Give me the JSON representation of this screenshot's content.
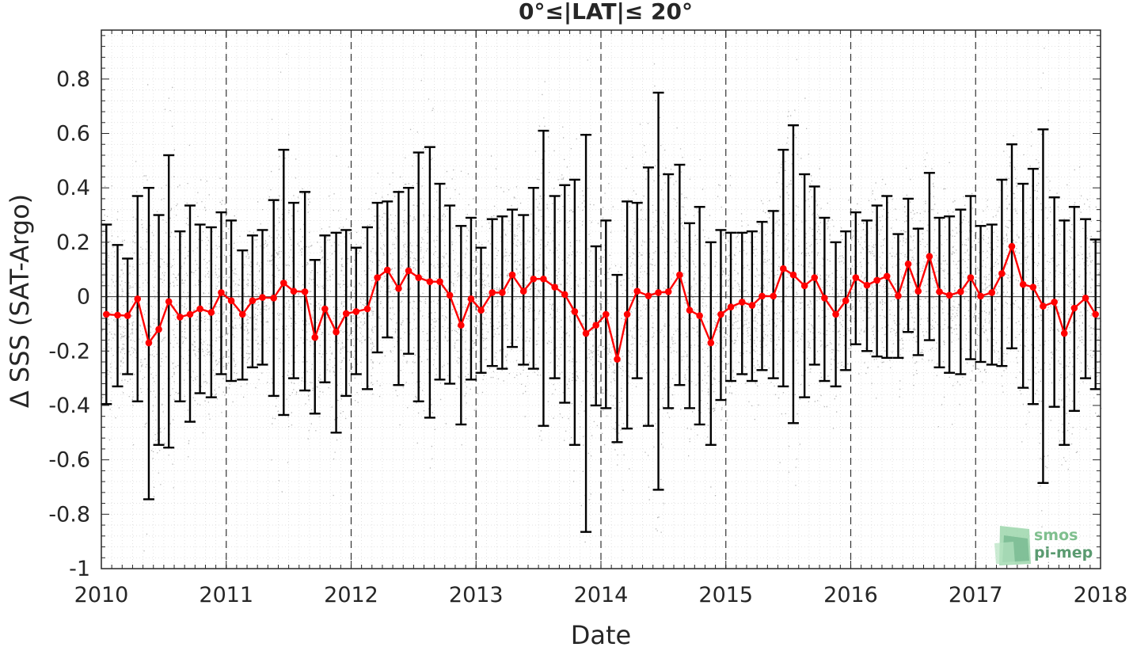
{
  "chart_data": {
    "type": "line",
    "title": "0°≤|LAT|≤ 20°",
    "xlabel": "Date",
    "ylabel": "Δ SSS (SAT-Argo)",
    "xlim": [
      2010,
      2018
    ],
    "ylim": [
      -1,
      0.98
    ],
    "x_ticks": [
      "2010",
      "2011",
      "2012",
      "2013",
      "2014",
      "2015",
      "2016",
      "2017",
      "2018"
    ],
    "y_ticks": [
      "0.8",
      "0.6",
      "0.4",
      "0.2",
      "0",
      "-0.2",
      "-0.4",
      "-0.6",
      "-0.8",
      "-1"
    ],
    "y_tick_values": [
      0.8,
      0.6,
      0.4,
      0.2,
      0,
      -0.2,
      -0.4,
      -0.6,
      -0.8,
      -1
    ],
    "grid": "minor dotted, dashed vertical lines at year boundaries",
    "series": [
      {
        "color": "#ff0000",
        "marker": "circle",
        "x": [
          2010.04,
          2010.13,
          2010.21,
          2010.29,
          2010.38,
          2010.46,
          2010.54,
          2010.63,
          2010.71,
          2010.79,
          2010.88,
          2010.96,
          2011.04,
          2011.13,
          2011.21,
          2011.29,
          2011.38,
          2011.46,
          2011.54,
          2011.63,
          2011.71,
          2011.79,
          2011.88,
          2011.96,
          2012.04,
          2012.13,
          2012.21,
          2012.29,
          2012.38,
          2012.46,
          2012.54,
          2012.63,
          2012.71,
          2012.79,
          2012.88,
          2012.96,
          2013.04,
          2013.13,
          2013.21,
          2013.29,
          2013.38,
          2013.46,
          2013.54,
          2013.63,
          2013.71,
          2013.79,
          2013.88,
          2013.96,
          2014.04,
          2014.13,
          2014.21,
          2014.29,
          2014.38,
          2014.46,
          2014.54,
          2014.63,
          2014.71,
          2014.79,
          2014.88,
          2014.96,
          2015.04,
          2015.13,
          2015.21,
          2015.29,
          2015.38,
          2015.46,
          2015.54,
          2015.63,
          2015.71,
          2015.79,
          2015.88,
          2015.96,
          2016.04,
          2016.13,
          2016.21,
          2016.29,
          2016.38,
          2016.46,
          2016.54,
          2016.63,
          2016.71,
          2016.79,
          2016.88,
          2016.96,
          2017.04,
          2017.13,
          2017.21,
          2017.29,
          2017.38,
          2017.46,
          2017.54,
          2017.63,
          2017.71,
          2017.79,
          2017.88,
          2017.96
        ],
        "y": [
          -0.065,
          -0.068,
          -0.07,
          -0.008,
          -0.17,
          -0.12,
          -0.018,
          -0.075,
          -0.065,
          -0.045,
          -0.058,
          0.015,
          -0.015,
          -0.065,
          -0.015,
          -0.003,
          -0.005,
          0.05,
          0.02,
          0.018,
          -0.15,
          -0.045,
          -0.13,
          -0.062,
          -0.055,
          -0.045,
          0.07,
          0.098,
          0.03,
          0.095,
          0.07,
          0.055,
          0.055,
          0.005,
          -0.105,
          -0.008,
          -0.05,
          0.015,
          0.015,
          0.08,
          0.02,
          0.065,
          0.065,
          0.035,
          0.008,
          -0.055,
          -0.135,
          -0.105,
          -0.065,
          -0.23,
          -0.065,
          0.02,
          0.003,
          0.015,
          0.018,
          0.08,
          -0.05,
          -0.07,
          -0.17,
          -0.065,
          -0.038,
          -0.02,
          -0.032,
          0.002,
          0.002,
          0.103,
          0.08,
          0.04,
          0.07,
          -0.005,
          -0.065,
          -0.015,
          0.07,
          0.042,
          0.06,
          0.075,
          0.003,
          0.12,
          0.02,
          0.148,
          0.018,
          0.005,
          0.018,
          0.07,
          0.002,
          0.015,
          0.085,
          0.185,
          0.045,
          0.035,
          -0.035,
          -0.02,
          -0.135,
          -0.042,
          -0.005,
          -0.065
        ],
        "upper": [
          0.265,
          0.19,
          0.14,
          0.37,
          0.4,
          0.3,
          0.52,
          0.24,
          0.335,
          0.265,
          0.255,
          0.31,
          0.28,
          0.17,
          0.225,
          0.245,
          0.355,
          0.54,
          0.345,
          0.385,
          0.135,
          0.225,
          0.235,
          0.245,
          0.18,
          0.255,
          0.345,
          0.35,
          0.385,
          0.4,
          0.53,
          0.55,
          0.415,
          0.335,
          0.26,
          0.29,
          0.18,
          0.285,
          0.295,
          0.32,
          0.3,
          0.4,
          0.61,
          0.37,
          0.41,
          0.43,
          0.595,
          0.185,
          0.28,
          0.08,
          0.35,
          0.345,
          0.475,
          0.75,
          0.45,
          0.485,
          0.27,
          0.33,
          0.2,
          0.245,
          0.235,
          0.235,
          0.24,
          0.275,
          0.315,
          0.54,
          0.63,
          0.45,
          0.405,
          0.29,
          0.2,
          0.24,
          0.31,
          0.28,
          0.335,
          0.37,
          0.23,
          0.36,
          0.25,
          0.455,
          0.29,
          0.295,
          0.32,
          0.37,
          0.26,
          0.265,
          0.43,
          0.56,
          0.415,
          0.47,
          0.615,
          0.365,
          0.28,
          0.33,
          0.285,
          0.21
        ],
        "lower": [
          -0.395,
          -0.33,
          -0.285,
          -0.385,
          -0.745,
          -0.545,
          -0.555,
          -0.385,
          -0.46,
          -0.355,
          -0.37,
          -0.285,
          -0.31,
          -0.305,
          -0.26,
          -0.25,
          -0.365,
          -0.435,
          -0.3,
          -0.345,
          -0.43,
          -0.315,
          -0.5,
          -0.365,
          -0.285,
          -0.34,
          -0.205,
          -0.15,
          -0.325,
          -0.21,
          -0.385,
          -0.445,
          -0.305,
          -0.32,
          -0.47,
          -0.305,
          -0.28,
          -0.255,
          -0.265,
          -0.185,
          -0.25,
          -0.265,
          -0.475,
          -0.3,
          -0.39,
          -0.545,
          -0.865,
          -0.4,
          -0.41,
          -0.535,
          -0.485,
          -0.3,
          -0.475,
          -0.71,
          -0.41,
          -0.325,
          -0.41,
          -0.47,
          -0.545,
          -0.38,
          -0.31,
          -0.285,
          -0.31,
          -0.27,
          -0.3,
          -0.33,
          -0.465,
          -0.37,
          -0.25,
          -0.31,
          -0.33,
          -0.27,
          -0.175,
          -0.2,
          -0.22,
          -0.225,
          -0.225,
          -0.13,
          -0.215,
          -0.16,
          -0.26,
          -0.28,
          -0.285,
          -0.23,
          -0.24,
          -0.25,
          -0.255,
          -0.19,
          -0.335,
          -0.395,
          -0.685,
          -0.405,
          -0.545,
          -0.42,
          -0.3,
          -0.34
        ]
      }
    ],
    "scatter_background": {
      "color": "#808080",
      "description_density": "dense grey point cloud"
    }
  },
  "logo": {
    "line1": "smos",
    "line2": "pi-mep",
    "color": "#7fbf8e"
  }
}
